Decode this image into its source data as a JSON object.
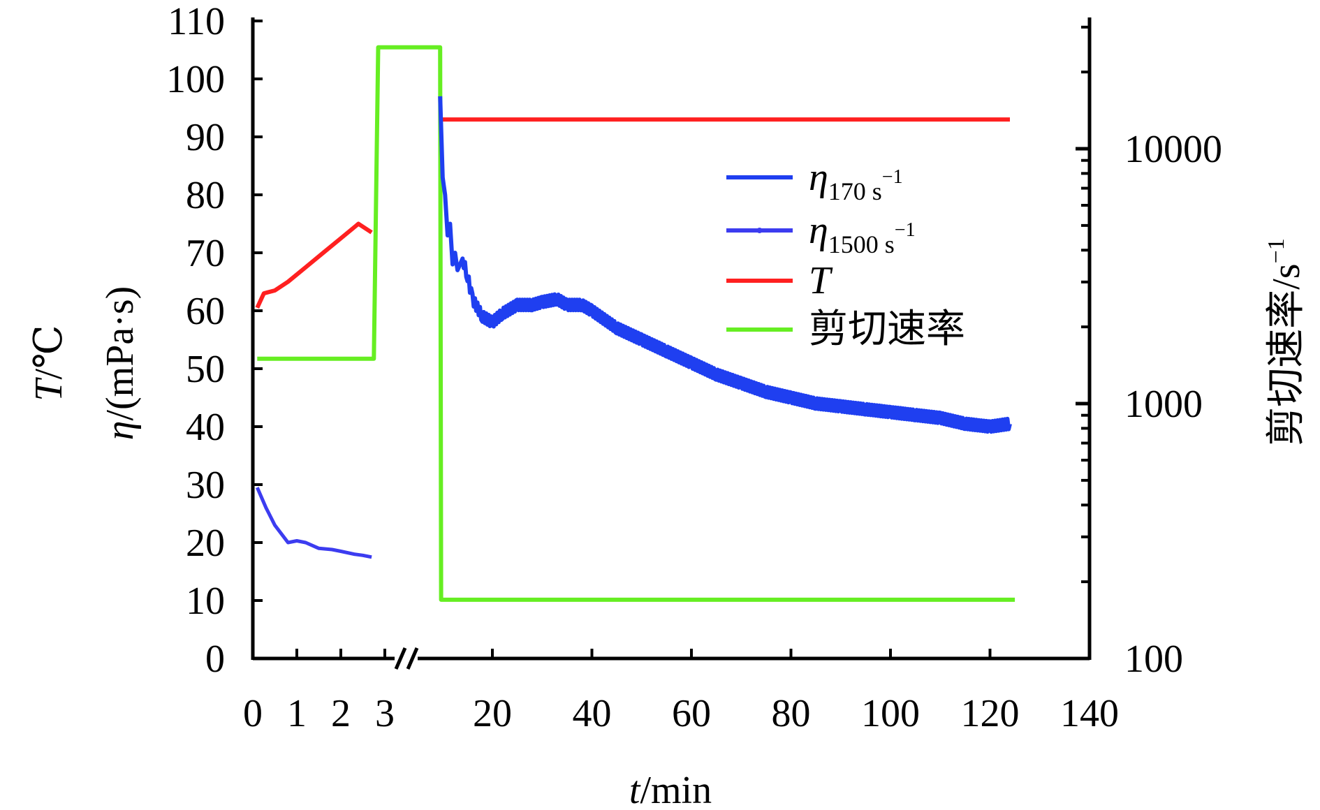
{
  "chart_data": {
    "type": "line",
    "x_axis": {
      "label": "t/min",
      "label_italic_part": "t",
      "label_rest": "/min",
      "segments": [
        {
          "ticks": [
            0,
            1,
            2,
            3
          ],
          "tick_labels": [
            "0",
            "1",
            "2",
            "3"
          ],
          "range": [
            0,
            3.2
          ]
        },
        {
          "ticks": [
            20,
            40,
            60,
            80,
            100,
            120,
            140
          ],
          "tick_labels": [
            "20",
            "40",
            "60",
            "80",
            "100",
            "120",
            "140"
          ],
          "range": [
            8,
            140
          ]
        }
      ],
      "axis_break": true
    },
    "y_left": {
      "label_line1": "T/℃",
      "label_line1_italic": "T",
      "label_line1_rest": "/℃",
      "label_line2": "η/(mPa·s)",
      "label_line2_italic": "η",
      "label_line2_rest": "/(mPa·s)",
      "range": [
        0,
        110
      ],
      "ticks": [
        0,
        10,
        20,
        30,
        40,
        50,
        60,
        70,
        80,
        90,
        100,
        110
      ],
      "tick_labels": [
        "0",
        "10",
        "20",
        "30",
        "40",
        "50",
        "60",
        "70",
        "80",
        "90",
        "100",
        "110"
      ]
    },
    "y_right": {
      "label": "剪切速率/s⁻¹",
      "label_main": "剪切速率/s",
      "label_sup": "−1",
      "scale": "log",
      "range": [
        100,
        35000
      ],
      "ticks": [
        100,
        1000,
        10000
      ],
      "tick_labels": [
        "100",
        "1000",
        "10000"
      ]
    },
    "legend": {
      "placement": "center-right",
      "entries": [
        {
          "key": "eta170",
          "symbol": "η",
          "subscript": "170 s",
          "sup": "−1",
          "color": "#1f3ff0"
        },
        {
          "key": "eta1500",
          "symbol": "η",
          "subscript": "1500 s",
          "sup": "−1",
          "color": "#3c3cf0"
        },
        {
          "key": "T",
          "symbol": "T",
          "subscript": "",
          "sup": "",
          "color": "#ff2020"
        },
        {
          "key": "rate",
          "symbol": "剪切速率",
          "subscript": "",
          "sup": "",
          "color": "#66ee22"
        }
      ]
    },
    "series": [
      {
        "key": "T",
        "axis": "left",
        "color": "#ff2020",
        "segments": [
          {
            "x": [
              0.1,
              0.25,
              0.5,
              0.8,
              1.2,
              1.6,
              2.0,
              2.4,
              2.7
            ],
            "y": [
              60.5,
              63,
              63.5,
              65,
              67.5,
              70,
              72.5,
              75,
              73.5
            ]
          },
          {
            "x": [
              10,
              30,
              50,
              70,
              90,
              110,
              124
            ],
            "y": [
              93,
              93,
              93,
              93,
              93,
              93,
              93
            ]
          }
        ]
      },
      {
        "key": "eta1500",
        "axis": "left",
        "color": "#3c3cf0",
        "segments": [
          {
            "x": [
              0.1,
              0.3,
              0.5,
              0.8,
              1.0,
              1.2,
              1.5,
              1.8,
              2.0,
              2.3,
              2.5,
              2.7
            ],
            "y": [
              29.5,
              26,
              23,
              20,
              20.3,
              20,
              19,
              18.8,
              18.5,
              18,
              17.8,
              17.5
            ]
          }
        ]
      },
      {
        "key": "eta170",
        "axis": "left",
        "color": "#1f3ff0",
        "segments": [
          {
            "x": [
              9.5,
              10,
              10.5,
              11,
              11.5,
              12,
              12.5,
              13,
              14,
              15,
              16,
              18,
              20,
              22,
              25,
              28,
              30,
              33,
              35,
              38,
              40,
              45,
              50,
              55,
              60,
              65,
              70,
              75,
              80,
              85,
              90,
              95,
              100,
              105,
              110,
              115,
              120,
              124
            ],
            "y": [
              97,
              83,
              80,
              73,
              75,
              68,
              70,
              67,
              69,
              66,
              62,
              59,
              58,
              59.5,
              61,
              61,
              61.5,
              62,
              61,
              61,
              60,
              57,
              55,
              53,
              51,
              49,
              47.5,
              46,
              45,
              44,
              43.5,
              43,
              42.5,
              42,
              41.5,
              40.5,
              40,
              40.5
            ]
          }
        ]
      },
      {
        "key": "rate",
        "axis": "right",
        "color": "#66ee22",
        "segments": [
          {
            "x": [
              0.1,
              2.75,
              2.85,
              3.5,
              9.5,
              9.7,
              10,
              20,
              40,
              60,
              80,
              100,
              120,
              125
            ],
            "y": [
              1500,
              1500,
              25000,
              25000,
              25000,
              170,
              170,
              170,
              170,
              170,
              170,
              170,
              170,
              170
            ]
          }
        ]
      }
    ]
  }
}
